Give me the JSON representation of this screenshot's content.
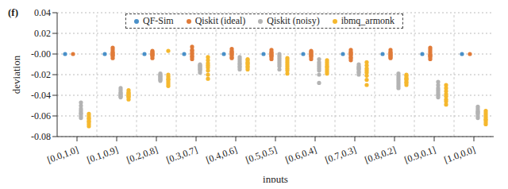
{
  "chart_data": {
    "type": "scatter",
    "title": "(f)",
    "x_label": "inputs",
    "y_label": "deviation",
    "categories": [
      "[0.0,1.0]",
      "[0.1,0.9]",
      "[0.2,0.8]",
      "[0.3,0.7]",
      "[0.4,0.6]",
      "[0.5,0.5]",
      "[0.6,0.4]",
      "[0.7,0.3]",
      "[0.8,0.2]",
      "[0.9,0.1]",
      "[1.0,0.0]"
    ],
    "series": [
      {
        "name": "QF-Sim",
        "color": "#4a90c8",
        "values": [
          [
            0
          ],
          [
            0
          ],
          [
            0
          ],
          [
            0
          ],
          [
            0
          ],
          [
            0
          ],
          [
            0
          ],
          [
            0
          ],
          [
            0
          ],
          [
            0
          ],
          [
            0
          ]
        ]
      },
      {
        "name": "Qiskit (ideal)",
        "color": "#e07b39",
        "values": [
          [
            0
          ],
          [
            0.004,
            0.002,
            0.001,
            0,
            -0.001,
            -0.002,
            -0.004,
            0.006
          ],
          [
            0.003,
            0.002,
            0.001,
            0,
            -0.001,
            -0.002,
            -0.004,
            0
          ],
          [
            0.007,
            0.004,
            0.003,
            0.001,
            0,
            -0.002,
            -0.003,
            -0.005
          ],
          [
            0.005,
            0.003,
            0.001,
            0,
            -0.001,
            -0.003,
            -0.004,
            0.002
          ],
          [
            0.004,
            0.002,
            0.001,
            -0.001,
            -0.002,
            -0.003,
            -0.005,
            0
          ],
          [
            0.003,
            0.001,
            0,
            -0.001,
            -0.002,
            -0.003,
            -0.005,
            0.002
          ],
          [
            0.004,
            0.002,
            0.001,
            0,
            -0.001,
            -0.003,
            -0.004,
            -0.006
          ],
          [
            0.004,
            0.002,
            0,
            -0.001,
            -0.002,
            -0.003,
            -0.004,
            0.001
          ],
          [
            0.006,
            0.004,
            0.002,
            0,
            -0.001,
            -0.003,
            -0.005,
            -0.002
          ],
          [
            0
          ]
        ]
      },
      {
        "name": "Qiskit (noisy)",
        "color": "#b3b3b3",
        "values": [
          [
            -0.047,
            -0.05,
            -0.053,
            -0.055,
            -0.057,
            -0.058,
            -0.06,
            -0.062
          ],
          [
            -0.033,
            -0.035,
            -0.037,
            -0.038,
            -0.039,
            -0.04,
            -0.041,
            -0.042
          ],
          [
            -0.019,
            -0.02,
            -0.021,
            -0.022,
            -0.023,
            -0.024,
            -0.025,
            -0.026
          ],
          [
            -0.01,
            -0.011,
            -0.012,
            -0.013,
            -0.014,
            -0.015,
            -0.016,
            -0.018
          ],
          [
            -0.003,
            -0.005,
            -0.007,
            -0.009,
            -0.01,
            -0.012,
            -0.013,
            -0.015
          ],
          [
            0,
            -0.002,
            -0.004,
            -0.006,
            -0.008,
            -0.01,
            -0.012,
            -0.015
          ],
          [
            -0.005,
            -0.008,
            -0.01,
            -0.012,
            -0.014,
            -0.016,
            -0.02,
            -0.028
          ],
          [
            -0.01,
            -0.012,
            -0.013,
            -0.014,
            -0.015,
            -0.017,
            -0.018,
            -0.02
          ],
          [
            -0.019,
            -0.021,
            -0.023,
            -0.025,
            -0.027,
            -0.029,
            -0.031,
            -0.033
          ],
          [
            -0.027,
            -0.03,
            -0.033,
            -0.035,
            -0.037,
            -0.039,
            -0.04,
            -0.042
          ],
          [
            -0.051,
            -0.053,
            -0.055,
            -0.056,
            -0.057,
            -0.058,
            -0.06,
            -0.062
          ]
        ]
      },
      {
        "name": "ibmq_armonk",
        "color": "#f5b82e",
        "values": [
          [
            -0.058,
            -0.06,
            -0.062,
            -0.063,
            -0.065,
            -0.066,
            -0.068,
            -0.07
          ],
          [
            -0.035,
            -0.037,
            -0.038,
            -0.039,
            -0.04,
            -0.041,
            -0.042,
            -0.044
          ],
          [
            0.003,
            -0.02,
            -0.022,
            -0.024,
            -0.025,
            -0.027,
            -0.029,
            -0.031
          ],
          [
            -0.003,
            -0.006,
            -0.009,
            -0.011,
            -0.013,
            -0.016,
            -0.02,
            -0.024
          ],
          [
            -0.005,
            -0.006,
            -0.008,
            -0.009,
            -0.01,
            -0.012,
            -0.013,
            -0.015
          ],
          [
            -0.004,
            -0.006,
            -0.008,
            -0.01,
            -0.012,
            -0.014,
            -0.016,
            -0.019
          ],
          [
            -0.006,
            -0.008,
            -0.01,
            -0.012,
            -0.013,
            -0.015,
            -0.017,
            -0.019
          ],
          [
            -0.008,
            -0.011,
            -0.014,
            -0.016,
            -0.018,
            -0.021,
            -0.025,
            -0.03
          ],
          [
            -0.02,
            -0.021,
            -0.023,
            -0.024,
            -0.025,
            -0.027,
            -0.028,
            -0.03
          ],
          [
            -0.03,
            -0.033,
            -0.036,
            -0.039,
            -0.041,
            -0.044,
            -0.046,
            -0.049
          ],
          [
            -0.055,
            -0.057,
            -0.059,
            -0.061,
            -0.063,
            -0.064,
            -0.066,
            -0.068
          ]
        ]
      }
    ],
    "ylim": [
      -0.08,
      0.04
    ],
    "yticks": [
      -0.08,
      -0.06,
      -0.04,
      -0.02,
      {
        "value": 0,
        "label": "-0.00"
      },
      0.02,
      0.04
    ],
    "grid": true,
    "legend": "top",
    "marker": "circle"
  }
}
